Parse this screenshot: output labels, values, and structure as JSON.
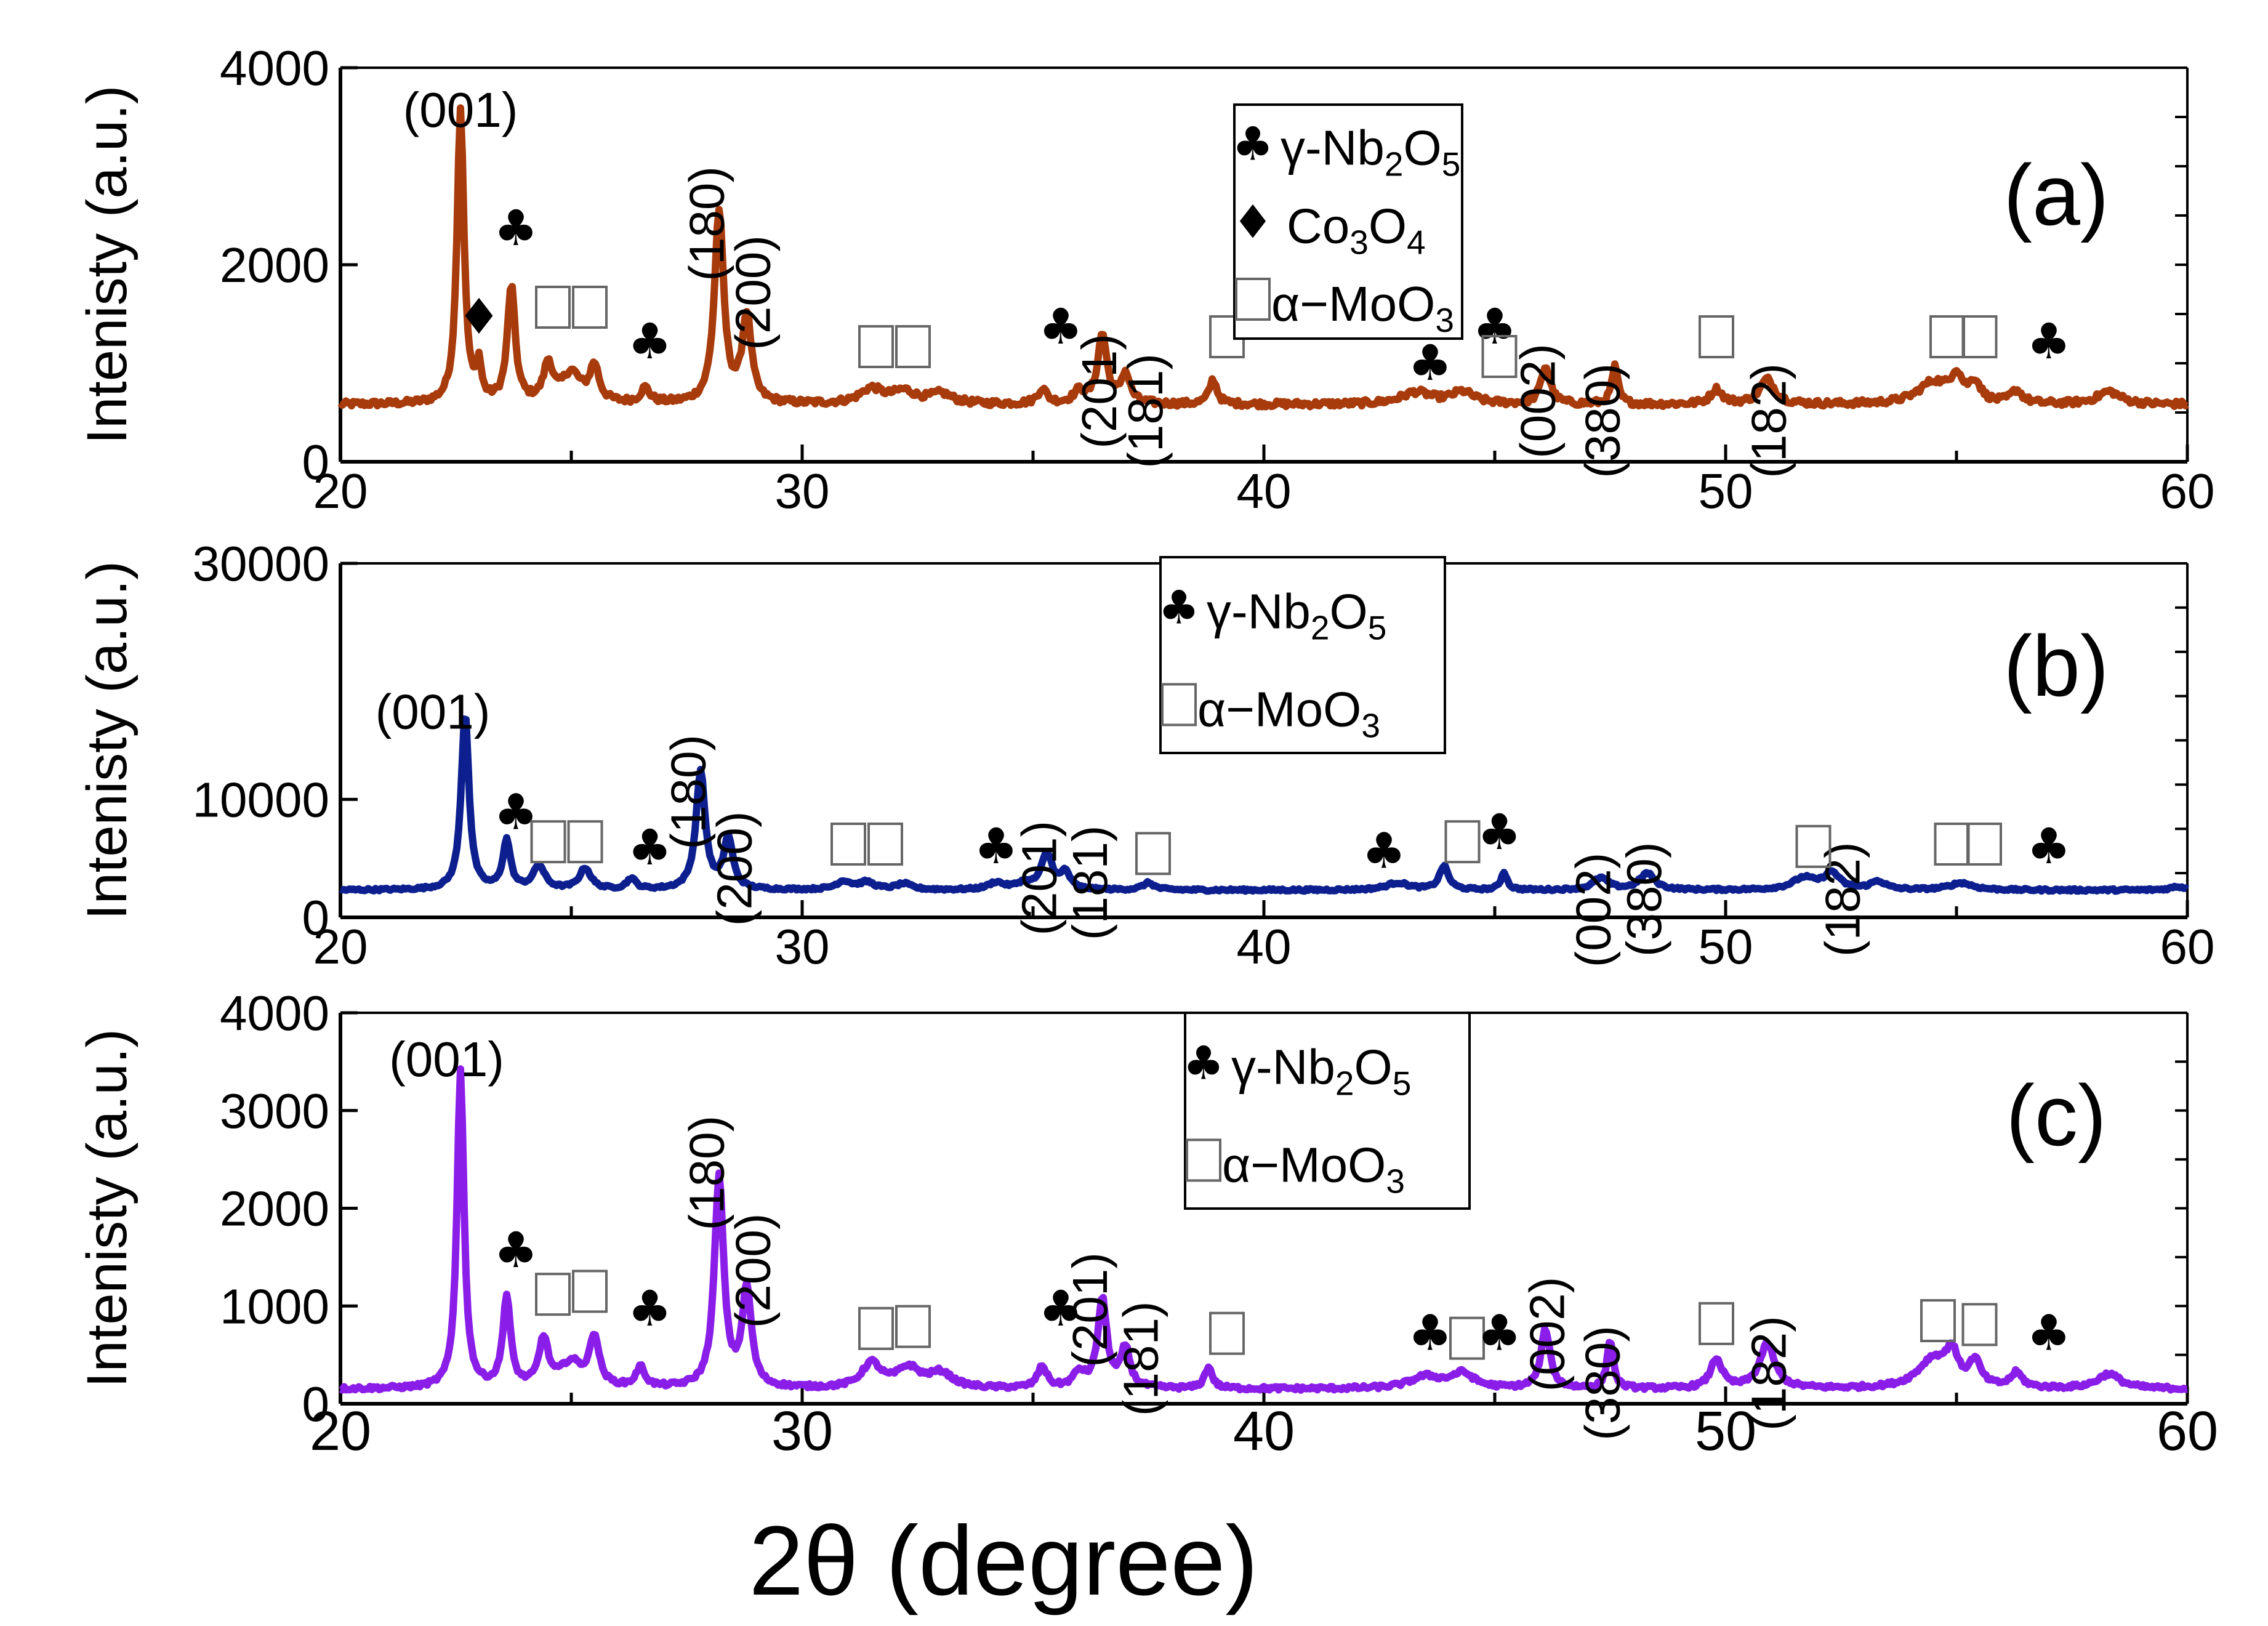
{
  "figure": {
    "xlabel": "2θ (degree)",
    "xlim": [
      20,
      60
    ],
    "xticks": [
      20,
      30,
      40,
      50,
      60
    ]
  },
  "legend_items": {
    "nb": "γ-Nb",
    "nb_sub2": "2",
    "nb_o": "O",
    "nb_sub5": "5",
    "co": "Co",
    "co_sub3": "3",
    "co_o": "O",
    "co_sub4": "4",
    "mo": "α−MoO",
    "mo_sub3": "3"
  },
  "symbols": {
    "club": "♣",
    "diamond": "♦",
    "square": "□"
  },
  "chart_data": [
    {
      "type": "line",
      "panel": "(a)",
      "color": "#a83b0c",
      "ylabel": "Intenisty (a.u.)",
      "ylim": [
        0,
        4000
      ],
      "yticks": [
        0,
        2000,
        4000
      ],
      "baseline": 580,
      "noise": 30,
      "peaks": [
        [
          22.6,
          3000,
          0.09
        ],
        [
          23.0,
          350,
          0.06
        ],
        [
          23.7,
          1180,
          0.1
        ],
        [
          24.5,
          380,
          0.12
        ],
        [
          25.0,
          300,
          0.25
        ],
        [
          25.5,
          360,
          0.12
        ],
        [
          26.6,
          150,
          0.12
        ],
        [
          28.2,
          1950,
          0.12
        ],
        [
          28.8,
          880,
          0.12
        ],
        [
          31.5,
          150,
          0.3
        ],
        [
          32.2,
          120,
          0.3
        ],
        [
          33.0,
          100,
          0.3
        ],
        [
          35.2,
          150,
          0.12
        ],
        [
          36.0,
          120,
          0.15
        ],
        [
          36.5,
          700,
          0.12
        ],
        [
          37.0,
          300,
          0.12
        ],
        [
          38.9,
          250,
          0.1
        ],
        [
          43.3,
          120,
          0.4
        ],
        [
          44.3,
          120,
          0.3
        ],
        [
          46.1,
          380,
          0.12
        ],
        [
          47.6,
          380,
          0.08
        ],
        [
          49.8,
          150,
          0.15
        ],
        [
          50.9,
          250,
          0.2
        ],
        [
          54.5,
          220,
          0.4
        ],
        [
          55.0,
          250,
          0.15
        ],
        [
          55.4,
          200,
          0.15
        ],
        [
          56.3,
          130,
          0.15
        ],
        [
          58.3,
          130,
          0.3
        ]
      ],
      "hkl_labels": [
        {
          "text": "(001)",
          "x": 22.6,
          "y": 3400,
          "rot": 0
        },
        {
          "text": "(180)",
          "x": 28.3,
          "y": 3000,
          "rot": -90
        },
        {
          "text": "(200)",
          "x": 29.3,
          "y": 2300,
          "rot": -90
        },
        {
          "text": "(201)",
          "x": 36.8,
          "y": 1300,
          "rot": -90
        },
        {
          "text": "(181)",
          "x": 37.8,
          "y": 1100,
          "rot": -90
        },
        {
          "text": "(002)",
          "x": 46.3,
          "y": 1200,
          "rot": -90
        },
        {
          "text": "(380)",
          "x": 47.7,
          "y": 1000,
          "rot": -90
        },
        {
          "text": "(182)",
          "x": 51.3,
          "y": 1000,
          "rot": -90
        }
      ],
      "markers": [
        {
          "sym": "club",
          "x": 23.8,
          "y": 2200
        },
        {
          "sym": "diamond",
          "x": 23.0,
          "y": 1300
        },
        {
          "sym": "square",
          "x": 24.6,
          "y": 1400
        },
        {
          "sym": "square",
          "x": 25.4,
          "y": 1400
        },
        {
          "sym": "club",
          "x": 26.7,
          "y": 1050
        },
        {
          "sym": "square",
          "x": 31.6,
          "y": 1000
        },
        {
          "sym": "square",
          "x": 32.4,
          "y": 1000
        },
        {
          "sym": "club",
          "x": 35.6,
          "y": 1200
        },
        {
          "sym": "square",
          "x": 39.2,
          "y": 1100
        },
        {
          "sym": "club",
          "x": 43.6,
          "y": 830
        },
        {
          "sym": "club",
          "x": 45.0,
          "y": 1200
        },
        {
          "sym": "square",
          "x": 45.1,
          "y": 900
        },
        {
          "sym": "square",
          "x": 49.8,
          "y": 1100
        },
        {
          "sym": "square",
          "x": 54.8,
          "y": 1100
        },
        {
          "sym": "square",
          "x": 55.5,
          "y": 1100
        },
        {
          "sym": "club",
          "x": 57.0,
          "y": 1050
        }
      ],
      "legend": [
        "γ-Nb2O5",
        "Co3O4",
        "α−MoO3"
      ]
    },
    {
      "type": "line",
      "panel": "(b)",
      "color": "#0d1f8f",
      "ylabel": "Intenisty (a.u.)",
      "ylim": [
        0,
        30000
      ],
      "yticks": [
        0,
        10000,
        30000
      ],
      "baseline": 2300,
      "noise": 100,
      "peaks": [
        [
          22.7,
          15000,
          0.1
        ],
        [
          23.6,
          4100,
          0.1
        ],
        [
          24.3,
          2000,
          0.15
        ],
        [
          25.3,
          1800,
          0.15
        ],
        [
          26.3,
          900,
          0.12
        ],
        [
          27.8,
          10000,
          0.12
        ],
        [
          28.4,
          4300,
          0.12
        ],
        [
          30.9,
          700,
          0.2
        ],
        [
          31.4,
          600,
          0.2
        ],
        [
          32.2,
          500,
          0.2
        ],
        [
          34.2,
          600,
          0.2
        ],
        [
          34.8,
          500,
          0.2
        ],
        [
          35.3,
          3000,
          0.15
        ],
        [
          35.7,
          1400,
          0.12
        ],
        [
          37.5,
          600,
          0.15
        ],
        [
          42.9,
          600,
          0.3
        ],
        [
          43.9,
          2000,
          0.12
        ],
        [
          45.2,
          1500,
          0.08
        ],
        [
          47.3,
          1000,
          0.2
        ],
        [
          48.3,
          1400,
          0.2
        ],
        [
          51.7,
          1000,
          0.3
        ],
        [
          52.3,
          1400,
          0.2
        ],
        [
          53.3,
          700,
          0.2
        ],
        [
          55.1,
          600,
          0.3
        ],
        [
          59.8,
          300,
          0.2
        ]
      ],
      "hkl_labels": [
        {
          "text": "(001)",
          "x": 22.0,
          "y": 16000,
          "rot": 0
        },
        {
          "text": "(180)",
          "x": 27.9,
          "y": 15500,
          "rot": -90
        },
        {
          "text": "(200)",
          "x": 28.9,
          "y": 9000,
          "rot": -90
        },
        {
          "text": "(201)",
          "x": 35.5,
          "y": 8200,
          "rot": -90
        },
        {
          "text": "(181)",
          "x": 36.6,
          "y": 7800,
          "rot": -90
        },
        {
          "text": "(002)",
          "x": 47.5,
          "y": 5500,
          "rot": -90
        },
        {
          "text": "(380)",
          "x": 48.6,
          "y": 6400,
          "rot": -90
        },
        {
          "text": "(182)",
          "x": 52.9,
          "y": 6400,
          "rot": -90
        }
      ],
      "markers": [
        {
          "sym": "club",
          "x": 23.8,
          "y": 7500
        },
        {
          "sym": "square",
          "x": 24.5,
          "y": 5000
        },
        {
          "sym": "square",
          "x": 25.3,
          "y": 5000
        },
        {
          "sym": "club",
          "x": 26.7,
          "y": 4500
        },
        {
          "sym": "square",
          "x": 31.0,
          "y": 4800
        },
        {
          "sym": "square",
          "x": 31.8,
          "y": 4800
        },
        {
          "sym": "club",
          "x": 34.2,
          "y": 4600
        },
        {
          "sym": "square",
          "x": 37.6,
          "y": 4000
        },
        {
          "sym": "club",
          "x": 42.6,
          "y": 4200
        },
        {
          "sym": "square",
          "x": 44.3,
          "y": 5000
        },
        {
          "sym": "club",
          "x": 45.1,
          "y": 5800
        },
        {
          "sym": "square",
          "x": 51.9,
          "y": 4600
        },
        {
          "sym": "square",
          "x": 54.9,
          "y": 4800
        },
        {
          "sym": "square",
          "x": 55.6,
          "y": 4800
        },
        {
          "sym": "club",
          "x": 57.0,
          "y": 4600
        }
      ],
      "legend": [
        "γ-Nb2O5",
        "α−MoO3"
      ]
    },
    {
      "type": "line",
      "panel": "(c)",
      "color": "#8a1ee8",
      "ylabel": "Intenisty (a.u.)",
      "ylim": [
        0,
        4000
      ],
      "yticks": [
        0,
        1000,
        2000,
        3000,
        4000
      ],
      "baseline": 150,
      "noise": 20,
      "peaks": [
        [
          22.6,
          3250,
          0.09
        ],
        [
          23.6,
          920,
          0.1
        ],
        [
          24.4,
          480,
          0.12
        ],
        [
          25.0,
          250,
          0.3
        ],
        [
          25.5,
          500,
          0.12
        ],
        [
          26.5,
          200,
          0.12
        ],
        [
          28.2,
          2150,
          0.12
        ],
        [
          28.8,
          1000,
          0.12
        ],
        [
          31.5,
          250,
          0.25
        ],
        [
          32.3,
          200,
          0.3
        ],
        [
          33.0,
          150,
          0.3
        ],
        [
          35.2,
          220,
          0.12
        ],
        [
          36.0,
          150,
          0.15
        ],
        [
          36.5,
          900,
          0.12
        ],
        [
          37.0,
          400,
          0.12
        ],
        [
          38.8,
          220,
          0.1
        ],
        [
          43.5,
          120,
          0.4
        ],
        [
          44.3,
          150,
          0.3
        ],
        [
          46.1,
          600,
          0.12
        ],
        [
          47.5,
          500,
          0.08
        ],
        [
          49.8,
          300,
          0.15
        ],
        [
          50.9,
          450,
          0.2
        ],
        [
          54.5,
          300,
          0.4
        ],
        [
          54.9,
          300,
          0.15
        ],
        [
          55.4,
          250,
          0.15
        ],
        [
          56.3,
          150,
          0.15
        ],
        [
          58.3,
          150,
          0.3
        ]
      ],
      "hkl_labels": [
        {
          "text": "(001)",
          "x": 22.3,
          "y": 3350,
          "rot": 0
        },
        {
          "text": "(180)",
          "x": 28.3,
          "y": 2950,
          "rot": -90
        },
        {
          "text": "(200)",
          "x": 29.3,
          "y": 1950,
          "rot": -90
        },
        {
          "text": "(201)",
          "x": 36.6,
          "y": 1550,
          "rot": -90
        },
        {
          "text": "(181)",
          "x": 37.7,
          "y": 1050,
          "rot": -90
        },
        {
          "text": "(002)",
          "x": 46.5,
          "y": 1300,
          "rot": -90
        },
        {
          "text": "(380)",
          "x": 47.7,
          "y": 800,
          "rot": -90
        },
        {
          "text": "(182)",
          "x": 51.3,
          "y": 900,
          "rot": -90
        }
      ],
      "markers": [
        {
          "sym": "club",
          "x": 23.8,
          "y": 1400
        },
        {
          "sym": "square",
          "x": 24.6,
          "y": 950
        },
        {
          "sym": "square",
          "x": 25.4,
          "y": 980
        },
        {
          "sym": "club",
          "x": 26.7,
          "y": 800
        },
        {
          "sym": "square",
          "x": 31.6,
          "y": 600
        },
        {
          "sym": "square",
          "x": 32.4,
          "y": 620
        },
        {
          "sym": "club",
          "x": 35.6,
          "y": 800
        },
        {
          "sym": "square",
          "x": 39.2,
          "y": 550
        },
        {
          "sym": "club",
          "x": 43.6,
          "y": 550
        },
        {
          "sym": "square",
          "x": 44.4,
          "y": 500
        },
        {
          "sym": "club",
          "x": 45.1,
          "y": 550
        },
        {
          "sym": "square",
          "x": 49.8,
          "y": 650
        },
        {
          "sym": "square",
          "x": 54.6,
          "y": 680
        },
        {
          "sym": "square",
          "x": 55.5,
          "y": 640
        },
        {
          "sym": "club",
          "x": 57.0,
          "y": 550
        }
      ],
      "legend": [
        "γ-Nb2O5",
        "α−MoO3"
      ]
    }
  ]
}
